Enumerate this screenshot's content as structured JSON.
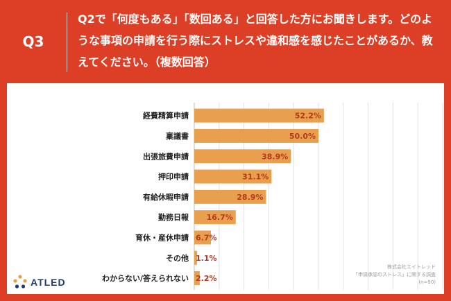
{
  "question": {
    "label": "Q3",
    "text": "Q2で「何度もある」「数回ある」と回答した方にお聞きします。どのような事項の申請を行う際にストレスや違和感を感じたことがあるか、教えてください。（複数回答）"
  },
  "chart_data": {
    "type": "bar",
    "orientation": "horizontal",
    "categories": [
      "経費精算申請",
      "稟議書",
      "出張旅費申請",
      "押印申請",
      "有給休暇申請",
      "勤務日報",
      "育休・産休申請",
      "その他",
      "わからない/答えられない"
    ],
    "values": [
      52.2,
      50.0,
      38.9,
      31.1,
      28.9,
      16.7,
      6.7,
      1.1,
      2.2
    ],
    "value_labels": [
      "52.2%",
      "50.0%",
      "38.9%",
      "31.1%",
      "28.9%",
      "16.7%",
      "6.7%",
      "1.1%",
      "2.2%"
    ],
    "xlim": [
      0,
      100
    ],
    "grid": true,
    "colors": {
      "bar": "#e9a04e",
      "label": "#b5391f",
      "grid": "#e2e2e2"
    }
  },
  "source_note": {
    "line1": "株式会社エイトレッド",
    "line2": "「申請承認のストレス」に関する調査",
    "line3": "(n=90)"
  },
  "logo": {
    "text": "ATLED",
    "icon": "atled-logo-icon"
  },
  "colors": {
    "accent": "#dc3f26"
  }
}
